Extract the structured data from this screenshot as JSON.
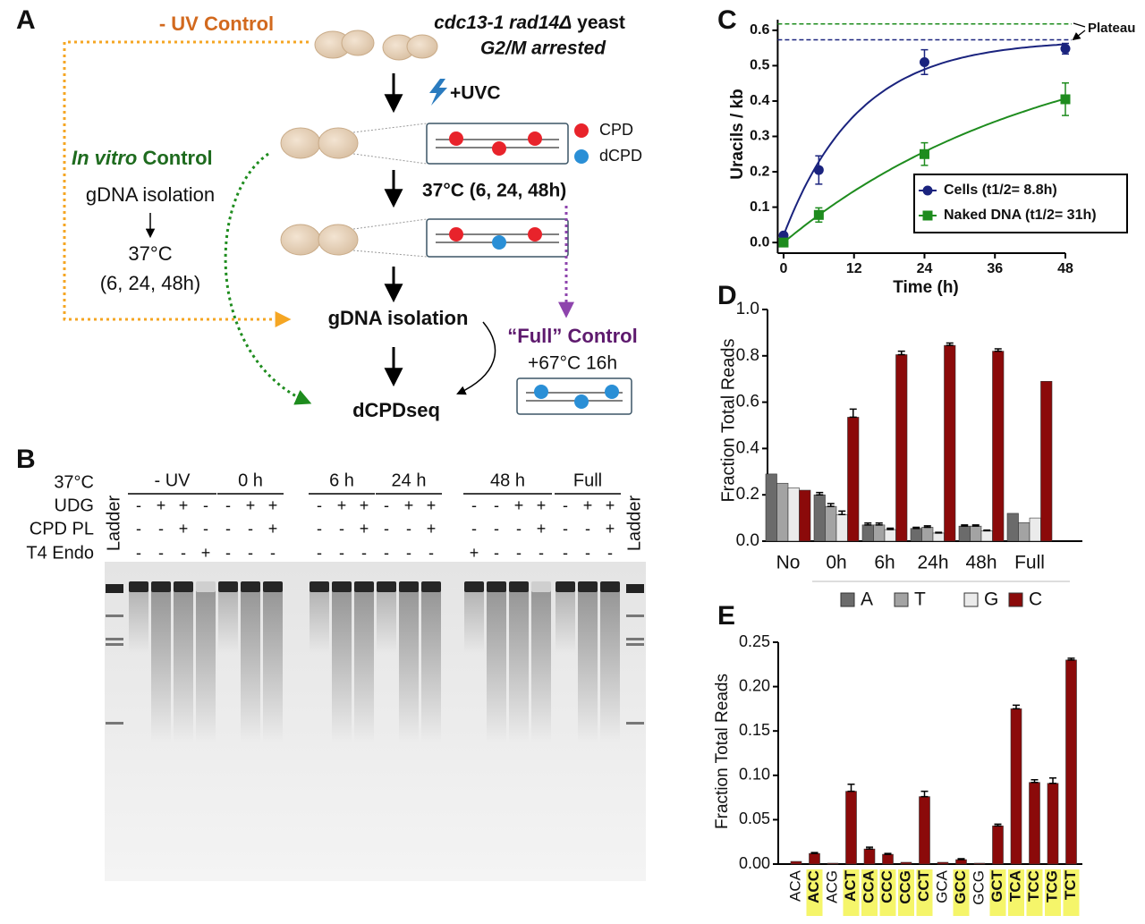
{
  "panel_labels": [
    "A",
    "B",
    "C",
    "D",
    "E"
  ],
  "diagram": {
    "uv_control": "- UV Control",
    "strain_genotype": "cdc13-1 rad14Δ",
    "strain_label": "yeast",
    "arrest": "G2/M arrested",
    "uvc": "+UVC",
    "legend_cpd": "CPD",
    "legend_dcpd": "dCPD",
    "invitro_italic": "In vitro",
    "invitro_rest": "Control",
    "invitro_step1": "gDNA isolation",
    "invitro_step2": "37°C",
    "invitro_step3": "(6, 24, 48h)",
    "incubation": "37°C (6, 24, 48h)",
    "gdna": "gDNA isolation",
    "full_control": "“Full” Control",
    "full_step": "+67°C 16h",
    "dcpdseq": "dCPDseq"
  },
  "gel": {
    "row_labels": [
      "37°C",
      "UDG",
      "CPD PL",
      "T4 Endo"
    ],
    "ladder": "Ladder",
    "groups": [
      {
        "label": "- UV",
        "signs": [
          [
            "-",
            "+",
            "+",
            "-"
          ],
          [
            "-",
            "-",
            "+",
            "-"
          ],
          [
            "-",
            "-",
            "-",
            "+"
          ]
        ]
      },
      {
        "label": "0 h",
        "signs": [
          [
            "-",
            "+",
            "+"
          ],
          [
            "-",
            "-",
            "+"
          ],
          [
            "-",
            "-",
            "-"
          ]
        ]
      },
      {
        "label": "6 h",
        "signs": [
          [
            "-",
            "+",
            "+"
          ],
          [
            "-",
            "-",
            "+"
          ],
          [
            "-",
            "-",
            "-"
          ]
        ]
      },
      {
        "label": "24 h",
        "signs": [
          [
            "-",
            "+",
            "+"
          ],
          [
            "-",
            "-",
            "+"
          ],
          [
            "-",
            "-",
            "-"
          ]
        ]
      },
      {
        "label": "48 h",
        "signs": [
          [
            "-",
            "-",
            "+",
            "+"
          ],
          [
            "-",
            "-",
            "-",
            "+"
          ],
          [
            "+",
            "-",
            "-",
            "-"
          ]
        ]
      },
      {
        "label": "Full",
        "signs": [
          [
            "-",
            "+",
            "+"
          ],
          [
            "-",
            "-",
            "+"
          ],
          [
            "-",
            "-",
            "-"
          ]
        ]
      }
    ]
  },
  "chart_data": [
    {
      "type": "line",
      "ylabel": "Uracils / kb",
      "xlabel": "Time (h)",
      "xlim": [
        -1,
        48
      ],
      "xticks": [
        0,
        12,
        24,
        36,
        48
      ],
      "ylim": [
        -0.03,
        0.63
      ],
      "yticks": [
        {
          "value": 0,
          "label": "0.0"
        },
        0.1,
        0.2,
        0.3,
        0.4,
        0.5,
        0.6
      ],
      "annotation": "Plateau",
      "series": [
        {
          "name": "Cells (t1/2= 8.8h)",
          "color": "#1a237e",
          "marker": "circle",
          "x": [
            0,
            6,
            24,
            48
          ],
          "values": [
            0.02,
            0.205,
            0.51,
            0.548
          ],
          "errors": [
            0,
            0.04,
            0.035,
            0.015
          ],
          "plateau": 0.573,
          "half_life": 8.8
        },
        {
          "name": "Naked DNA (t1/2= 31h)",
          "color": "#1e8c1e",
          "marker": "square",
          "x": [
            0,
            6,
            24,
            48
          ],
          "values": [
            0,
            0.078,
            0.25,
            0.405
          ],
          "errors": [
            0.005,
            0.02,
            0.032,
            0.046
          ],
          "plateau": 0.618,
          "half_life": 31
        }
      ]
    },
    {
      "type": "bar",
      "ylabel": "Fraction Total Reads",
      "ylim": [
        0,
        1
      ],
      "yticks": [
        {
          "value": 0,
          "label": "0.0"
        },
        0.2,
        0.4,
        0.6,
        0.8,
        {
          "value": 1,
          "label": "1.0"
        }
      ],
      "categories": [
        "No",
        "0h",
        "6h",
        "24h",
        "48h",
        "Full"
      ],
      "series": [
        {
          "name": "A",
          "color": "#6b6b6b",
          "values": [
            0.29,
            0.2,
            0.07,
            0.055,
            0.065,
            0.12
          ],
          "errors": [
            0,
            0.01,
            0.008,
            0.005,
            0.005,
            0
          ]
        },
        {
          "name": "T",
          "color": "#a3a3a3",
          "values": [
            0.25,
            0.15,
            0.07,
            0.06,
            0.065,
            0.08
          ],
          "errors": [
            0,
            0.012,
            0.008,
            0.006,
            0.005,
            0
          ]
        },
        {
          "name": "G",
          "color": "#ebebeb",
          "values": [
            0.23,
            0.115,
            0.05,
            0.035,
            0.045,
            0.1
          ],
          "errors": [
            0,
            0.015,
            0.006,
            0.003,
            0.003,
            0
          ]
        },
        {
          "name": "C",
          "color": "#8b0a0a",
          "values": [
            0.22,
            0.535,
            0.805,
            0.845,
            0.82,
            0.69
          ],
          "errors": [
            0,
            0.035,
            0.015,
            0.01,
            0.01,
            0
          ]
        }
      ]
    },
    {
      "type": "bar",
      "ylabel": "Fraction Total Reads",
      "ylim": [
        0,
        0.25
      ],
      "yticks": [
        {
          "value": 0,
          "label": "0.00"
        },
        0.05,
        {
          "value": 0.1,
          "label": "0.10"
        },
        0.15,
        {
          "value": 0.2,
          "label": "0.20"
        },
        0.25
      ],
      "color": "#8b0a0a",
      "highlight_color": "#f5f56a",
      "categories": [
        "ACA",
        "ACC",
        "ACG",
        "ACT",
        "CCA",
        "CCC",
        "CCG",
        "CCT",
        "GCA",
        "GCC",
        "GCG",
        "GCT",
        "TCA",
        "TCC",
        "TCG",
        "TCT"
      ],
      "highlight": [
        false,
        true,
        false,
        true,
        true,
        true,
        true,
        true,
        false,
        true,
        false,
        true,
        true,
        true,
        true,
        true
      ],
      "values": [
        0.003,
        0.012,
        0.001,
        0.082,
        0.017,
        0.011,
        0.002,
        0.076,
        0.002,
        0.005,
        0.001,
        0.043,
        0.175,
        0.092,
        0.091,
        0.23
      ],
      "errors": [
        0,
        0.001,
        0,
        0.008,
        0.002,
        0.001,
        0,
        0.006,
        0,
        0.001,
        0,
        0.002,
        0.004,
        0.003,
        0.006,
        0.002
      ]
    }
  ]
}
